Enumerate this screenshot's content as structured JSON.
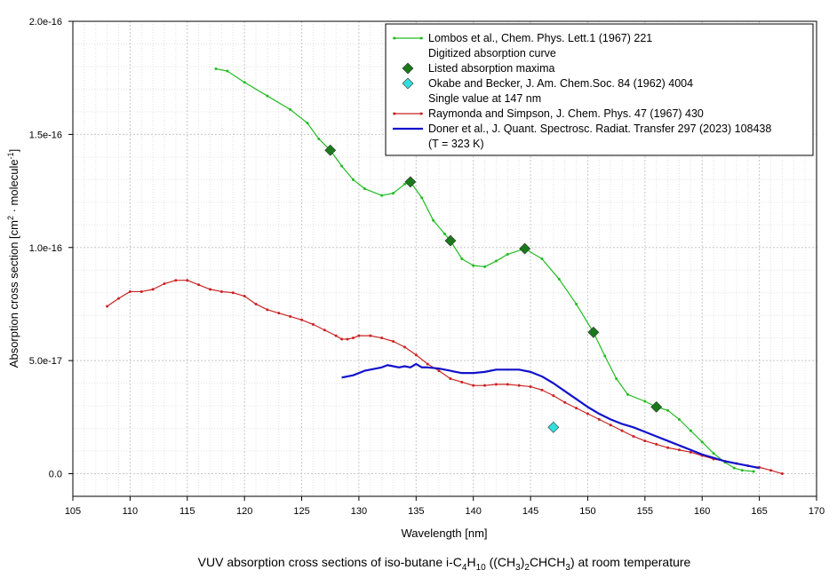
{
  "chart_data": {
    "type": "line",
    "title": "",
    "xlabel": "Wavelength [nm]",
    "ylabel": "Absorption cross section [cm2 molecule-1]",
    "ylabel_parts": {
      "main": "Absorption cross section [cm",
      "sup1": "2",
      "mid": " · molecule",
      "sup2": "-1",
      "end": "]"
    },
    "xlim": [
      105,
      170
    ],
    "ylim": [
      -1e-17,
      2e-16
    ],
    "xticks": [
      105,
      110,
      115,
      120,
      125,
      130,
      135,
      140,
      145,
      150,
      155,
      160,
      165,
      170
    ],
    "xtick_labels": [
      "105",
      "110",
      "115",
      "120",
      "125",
      "130",
      "135",
      "140",
      "145",
      "150",
      "155",
      "160",
      "165",
      "170"
    ],
    "yticks": [
      0,
      5e-17,
      1e-16,
      1.5e-16,
      2e-16
    ],
    "ytick_labels": [
      "0.0",
      "5.0e-17",
      "1.0e-16",
      "1.5e-16",
      "2.0e-16"
    ],
    "grid": true,
    "legend_position": "top-right",
    "caption": {
      "prefix": "VUV absorption cross sections of iso-butane i-C",
      "sub1": "4",
      "mid1": "H",
      "sub2": "10",
      "mid2": " ((CH",
      "sub3": "3",
      "mid3": ")",
      "sub4": "2",
      "mid4": "CHCH",
      "sub5": "3",
      "suffix": ") at room temperature"
    },
    "series": [
      {
        "name": "Lombos et al., Chem. Phys. Lett.1 (1967) 221",
        "name2": "Digitized absorption curve",
        "color": "#22bb22",
        "style": "line-markers",
        "x": [
          117.5,
          118.5,
          120,
          122,
          124,
          125.5,
          126.5,
          127.5,
          128.5,
          129.5,
          130.5,
          132,
          133,
          134,
          134.5,
          135.5,
          136.5,
          137.5,
          138,
          139,
          140,
          141,
          142,
          143,
          144.5,
          146,
          147.5,
          149,
          150.5,
          151.5,
          152.5,
          153.5,
          155,
          156,
          157,
          158,
          159,
          160,
          161,
          162,
          162.8,
          163.5,
          164.5
        ],
        "y": [
          1.79e-16,
          1.78e-16,
          1.73e-16,
          1.67e-16,
          1.61e-16,
          1.55e-16,
          1.48e-16,
          1.43e-16,
          1.36e-16,
          1.3e-16,
          1.26e-16,
          1.23e-16,
          1.24e-16,
          1.28e-16,
          1.29e-16,
          1.22e-16,
          1.12e-16,
          1.06e-16,
          1.03e-16,
          9.5e-17,
          9.2e-17,
          9.15e-17,
          9.4e-17,
          9.7e-17,
          9.95e-17,
          9.5e-17,
          8.6e-17,
          7.5e-17,
          6.25e-17,
          5.2e-17,
          4.2e-17,
          3.5e-17,
          3.2e-17,
          2.95e-17,
          2.8e-17,
          2.4e-17,
          1.9e-17,
          1.4e-17,
          9e-18,
          5e-18,
          2.5e-18,
          1.5e-18,
          1e-18
        ]
      },
      {
        "name": "Listed absorption maxima",
        "color": "#1a7a1a",
        "style": "diamonds",
        "x": [
          127.5,
          134.5,
          138,
          144.5,
          150.5,
          156
        ],
        "y": [
          1.43e-16,
          1.29e-16,
          1.03e-16,
          9.95e-17,
          6.25e-17,
          2.95e-17
        ]
      },
      {
        "name": "Okabe and Becker, J. Am. Chem.Soc. 84 (1962) 4004",
        "name2": "Single value at 147 nm",
        "color": "#33dddd",
        "style": "diamonds",
        "x": [
          147
        ],
        "y": [
          2.05e-17
        ]
      },
      {
        "name": "Raymonda and Simpson, J. Chem. Phys. 47 (1967) 430",
        "color": "#cc2222",
        "style": "line-markers",
        "x": [
          108,
          109,
          110,
          111,
          112,
          113,
          114,
          115,
          116,
          117,
          118,
          119,
          120,
          121,
          122,
          123,
          124,
          125,
          126,
          127,
          128,
          128.5,
          129,
          129.5,
          130,
          131,
          132,
          133,
          134,
          135,
          136,
          137,
          138,
          139,
          140,
          141,
          142,
          143,
          144,
          145,
          146,
          147,
          148,
          149,
          150,
          151,
          152,
          153,
          154,
          155,
          156,
          157,
          158,
          159,
          160,
          161,
          162,
          163,
          164,
          165,
          166,
          167
        ],
        "y": [
          7.4e-17,
          7.75e-17,
          8.05e-17,
          8.05e-17,
          8.15e-17,
          8.4e-17,
          8.55e-17,
          8.55e-17,
          8.35e-17,
          8.15e-17,
          8.05e-17,
          8e-17,
          7.85e-17,
          7.5e-17,
          7.25e-17,
          7.1e-17,
          6.95e-17,
          6.8e-17,
          6.6e-17,
          6.35e-17,
          6.1e-17,
          5.95e-17,
          5.95e-17,
          6e-17,
          6.1e-17,
          6.1e-17,
          6e-17,
          5.85e-17,
          5.6e-17,
          5.25e-17,
          4.85e-17,
          4.55e-17,
          4.2e-17,
          4.05e-17,
          3.9e-17,
          3.9e-17,
          3.95e-17,
          3.95e-17,
          3.9e-17,
          3.85e-17,
          3.7e-17,
          3.45e-17,
          3.15e-17,
          2.9e-17,
          2.65e-17,
          2.4e-17,
          2.15e-17,
          1.9e-17,
          1.65e-17,
          1.45e-17,
          1.3e-17,
          1.15e-17,
          1.05e-17,
          9.5e-18,
          8e-18,
          6.5e-18,
          5.5e-18,
          4.5e-18,
          3.5e-18,
          2.8e-18,
          1.5e-18,
          0
        ]
      },
      {
        "name": "Doner et al., J. Quant. Spectrosc. Radiat. Transfer 297 (2023) 108438",
        "name2": "(T = 323 K)",
        "color": "#1111cc",
        "style": "line",
        "x": [
          128.5,
          129.5,
          130.5,
          131.5,
          132,
          132.5,
          133,
          133.5,
          134,
          134.5,
          135,
          135.5,
          136,
          137,
          138,
          139,
          140,
          141,
          142,
          143,
          144,
          145,
          146,
          147,
          148,
          149,
          150,
          151,
          152,
          153,
          154,
          155,
          156,
          157,
          158,
          159,
          160,
          161,
          162,
          163,
          164,
          165
        ],
        "y": [
          4.25e-17,
          4.35e-17,
          4.55e-17,
          4.65e-17,
          4.7e-17,
          4.8e-17,
          4.75e-17,
          4.7e-17,
          4.75e-17,
          4.7e-17,
          4.85e-17,
          4.7e-17,
          4.7e-17,
          4.65e-17,
          4.55e-17,
          4.45e-17,
          4.45e-17,
          4.5e-17,
          4.6e-17,
          4.6e-17,
          4.6e-17,
          4.5e-17,
          4.3e-17,
          4e-17,
          3.65e-17,
          3.3e-17,
          2.95e-17,
          2.65e-17,
          2.4e-17,
          2.2e-17,
          2.05e-17,
          1.85e-17,
          1.65e-17,
          1.45e-17,
          1.25e-17,
          1.05e-17,
          8.5e-18,
          7e-18,
          5.5e-18,
          4.5e-18,
          3.5e-18,
          2.5e-18
        ]
      }
    ]
  }
}
